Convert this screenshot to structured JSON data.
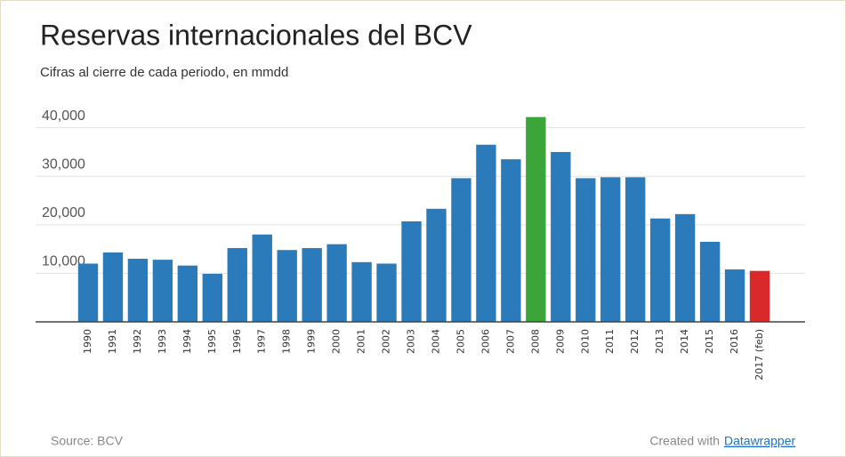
{
  "chart_data": {
    "type": "bar",
    "title": "Reservas internacionales del BCV",
    "subtitle": "Cifras al cierre de cada periodo, en mmdd",
    "categories": [
      "1990",
      "1991",
      "1992",
      "1993",
      "1994",
      "1995",
      "1996",
      "1997",
      "1998",
      "1999",
      "2000",
      "2001",
      "2002",
      "2003",
      "2004",
      "2005",
      "2006",
      "2007",
      "2008",
      "2009",
      "2010",
      "2011",
      "2012",
      "2013",
      "2014",
      "2015",
      "2016",
      "2017 (feb)"
    ],
    "values": [
      12000,
      14300,
      13000,
      12800,
      11600,
      9900,
      15200,
      18000,
      14800,
      15200,
      16000,
      12300,
      12000,
      20700,
      23300,
      29600,
      36500,
      33500,
      42200,
      35000,
      29600,
      29800,
      29800,
      21300,
      22200,
      16500,
      10800,
      10500
    ],
    "colors": [
      "#2b7bba",
      "#2b7bba",
      "#2b7bba",
      "#2b7bba",
      "#2b7bba",
      "#2b7bba",
      "#2b7bba",
      "#2b7bba",
      "#2b7bba",
      "#2b7bba",
      "#2b7bba",
      "#2b7bba",
      "#2b7bba",
      "#2b7bba",
      "#2b7bba",
      "#2b7bba",
      "#2b7bba",
      "#2b7bba",
      "#3ca539",
      "#2b7bba",
      "#2b7bba",
      "#2b7bba",
      "#2b7bba",
      "#2b7bba",
      "#2b7bba",
      "#2b7bba",
      "#2b7bba",
      "#d9292b"
    ],
    "ylim": [
      0,
      42500
    ],
    "yticks": [
      {
        "value": 10000,
        "label": "10,000"
      },
      {
        "value": 20000,
        "label": "20,000"
      },
      {
        "value": 30000,
        "label": "30,000"
      },
      {
        "value": 40000,
        "label": "40,000"
      }
    ],
    "grid": true,
    "source": "Source: BCV",
    "credit": "Created with",
    "credit_link": "Datawrapper"
  }
}
